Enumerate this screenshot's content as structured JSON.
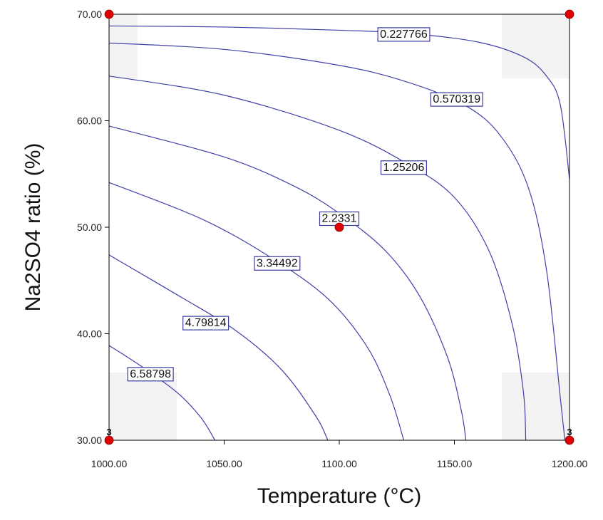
{
  "chart_data": {
    "type": "contour",
    "xlabel": "Temperature (°C)",
    "ylabel": "Na2SO4 ratio (%)",
    "xlim": [
      1000,
      1200
    ],
    "ylim": [
      30,
      70
    ],
    "x_ticks": [
      "1000.00",
      "1050.00",
      "1100.00",
      "1150.00",
      "1200.00"
    ],
    "y_ticks": [
      "30.00",
      "40.00",
      "50.00",
      "60.00",
      "70.00"
    ],
    "contour_color": "#4040a8",
    "point_color": "#e00000",
    "contours": [
      {
        "label": "0.227766",
        "label_at": [
          1128,
          68.2
        ],
        "points": [
          [
            1000,
            68.9
          ],
          [
            1050,
            68.8
          ],
          [
            1100,
            68.5
          ],
          [
            1130,
            68.2
          ],
          [
            1160,
            67.4
          ],
          [
            1180,
            66.0
          ],
          [
            1190,
            64.2
          ],
          [
            1196,
            61.5
          ],
          [
            1200,
            54.5
          ]
        ]
      },
      {
        "label": "0.570319",
        "label_at": [
          1151,
          62.1
        ],
        "points": [
          [
            1000,
            67.3
          ],
          [
            1050,
            66.7
          ],
          [
            1100,
            65.2
          ],
          [
            1130,
            63.6
          ],
          [
            1155,
            61.4
          ],
          [
            1170,
            58.6
          ],
          [
            1182,
            53.8
          ],
          [
            1190,
            46.0
          ],
          [
            1196,
            34.0
          ],
          [
            1198,
            30.0
          ]
        ]
      },
      {
        "label": "1.25206",
        "label_at": [
          1128,
          55.7
        ],
        "points": [
          [
            1000,
            64.2
          ],
          [
            1050,
            62.4
          ],
          [
            1100,
            59.1
          ],
          [
            1130,
            55.9
          ],
          [
            1150,
            52.8
          ],
          [
            1165,
            47.8
          ],
          [
            1175,
            41.0
          ],
          [
            1180,
            34.5
          ],
          [
            1181,
            30.0
          ]
        ]
      },
      {
        "label": "2.2331",
        "label_at": [
          1100,
          50.9
        ],
        "points": [
          [
            1000,
            59.5
          ],
          [
            1050,
            56.6
          ],
          [
            1080,
            53.9
          ],
          [
            1100,
            51.3
          ],
          [
            1120,
            47.8
          ],
          [
            1135,
            43.5
          ],
          [
            1147,
            37.8
          ],
          [
            1153,
            32.8
          ],
          [
            1155,
            30.0
          ]
        ]
      },
      {
        "label": "3.34492",
        "label_at": [
          1073,
          46.7
        ],
        "points": [
          [
            1000,
            54.2
          ],
          [
            1040,
            50.8
          ],
          [
            1070,
            47.2
          ],
          [
            1095,
            43.3
          ],
          [
            1112,
            38.8
          ],
          [
            1122,
            34.2
          ],
          [
            1128,
            30.0
          ]
        ]
      },
      {
        "label": "4.79814",
        "label_at": [
          1042,
          41.1
        ],
        "points": [
          [
            1000,
            47.4
          ],
          [
            1030,
            43.6
          ],
          [
            1055,
            40.3
          ],
          [
            1075,
            36.6
          ],
          [
            1090,
            32.2
          ],
          [
            1095,
            30.0
          ]
        ]
      },
      {
        "label": "6.58798",
        "label_at": [
          1018,
          36.3
        ],
        "points": [
          [
            1000,
            38.9
          ],
          [
            1015,
            36.8
          ],
          [
            1030,
            34.4
          ],
          [
            1040,
            32.1
          ],
          [
            1046,
            30.0
          ]
        ]
      }
    ],
    "design_points": [
      {
        "x": 1000,
        "y": 70,
        "count": ""
      },
      {
        "x": 1200,
        "y": 70,
        "count": ""
      },
      {
        "x": 1100,
        "y": 50,
        "count": ""
      },
      {
        "x": 1000,
        "y": 30,
        "count": "3"
      },
      {
        "x": 1200,
        "y": 30,
        "count": "3"
      }
    ]
  }
}
